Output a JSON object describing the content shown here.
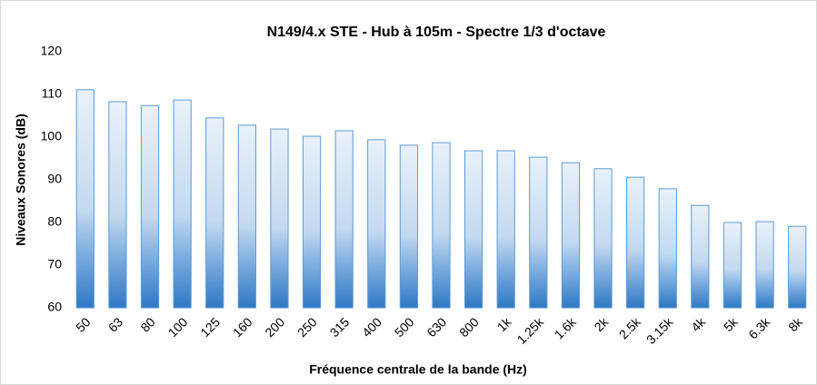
{
  "chart_data": {
    "type": "bar",
    "title": "N149/4.x STE - Hub à 105m - Spectre 1/3 d'octave",
    "x_label": "Fréquence centrale de la bande (Hz)",
    "y_label": "Niveaux Sonores (dB)",
    "categories": [
      "50",
      "63",
      "80",
      "100",
      "125",
      "160",
      "200",
      "250",
      "315",
      "400",
      "500",
      "630",
      "800",
      "1k",
      "1.25k",
      "1.6k",
      "2k",
      "2.5k",
      "3.15k",
      "4k",
      "5k",
      "6.3k",
      "8k"
    ],
    "values": [
      111.1,
      108.3,
      107.4,
      108.7,
      104.5,
      102.8,
      101.9,
      100.2,
      101.5,
      99.4,
      98.1,
      98.7,
      96.8,
      96.8,
      95.3,
      94.0,
      92.6,
      90.6,
      87.9,
      84.0,
      80.0,
      80.2,
      79.1
    ],
    "color": "#2f78c4",
    "ylim": [
      60,
      120
    ],
    "yticks": [
      60,
      70,
      80,
      90,
      100,
      110,
      120
    ],
    "grid": false
  }
}
